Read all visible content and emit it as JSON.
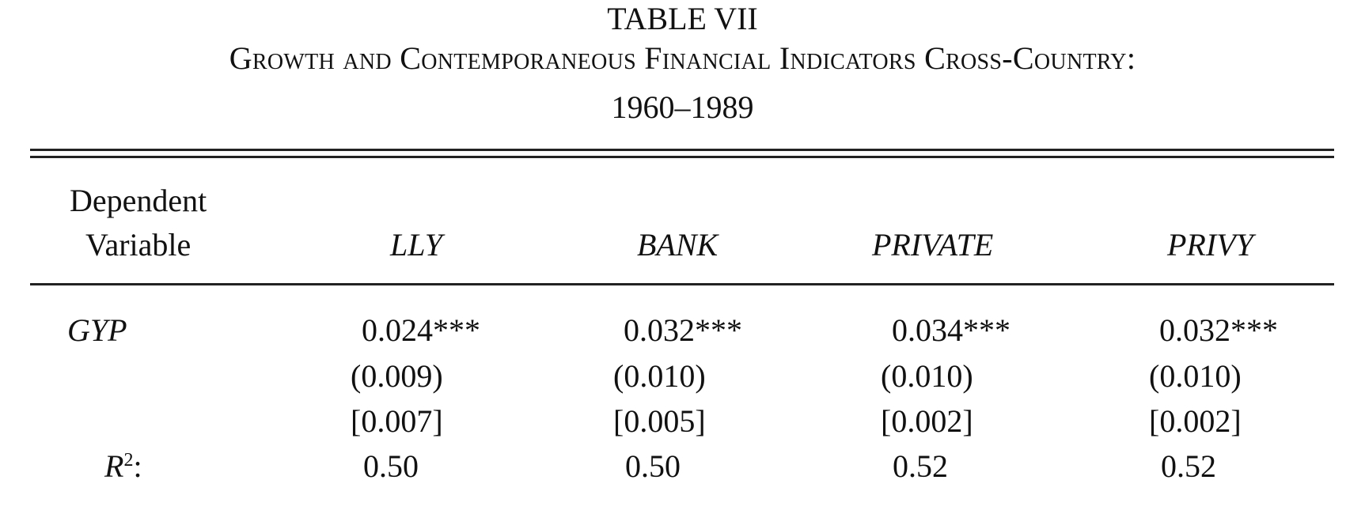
{
  "table": {
    "title": "TABLE VII",
    "subtitle": "Growth and Contemporaneous Financial Indicators Cross-Country:",
    "years": "1960–1989",
    "header": {
      "row_label_line1": "Dependent",
      "row_label_line2": "Variable",
      "columns": [
        "LLY",
        "BANK",
        "PRIVATE",
        "PRIVY"
      ]
    },
    "rows": [
      {
        "label": "GYP",
        "coefficients": [
          "0.024***",
          "0.032***",
          "0.034***",
          "0.032***"
        ],
        "std_errors": [
          "(0.009)",
          "(0.010)",
          "(0.010)",
          "(0.010)"
        ],
        "p_values": [
          "[0.007]",
          "[0.005]",
          "[0.002]",
          "[0.002]"
        ]
      }
    ],
    "r2": {
      "label_base": "R",
      "label_sup": "2",
      "label_suffix": ":",
      "values": [
        "0.50",
        "0.50",
        "0.52",
        "0.52"
      ]
    }
  }
}
